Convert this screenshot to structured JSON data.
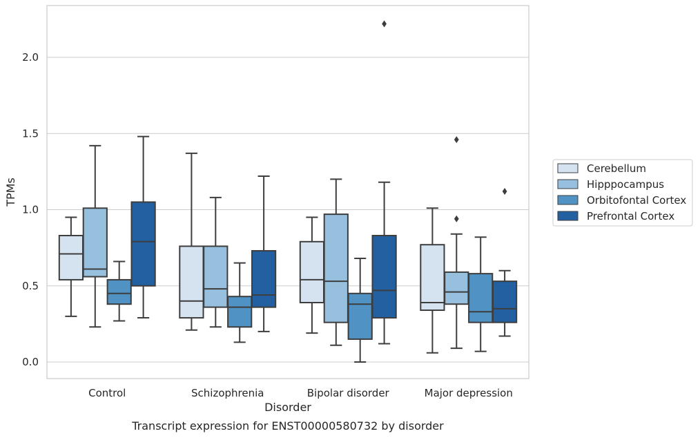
{
  "chart_data": {
    "type": "box",
    "title": "Transcript expression for ENST00000580732 by disorder",
    "xlabel": "Disorder",
    "ylabel": "TPMs",
    "ylim": [
      -0.1,
      2.35
    ],
    "yticks": [
      "0.0",
      "0.5",
      "1.0",
      "1.5",
      "2.0"
    ],
    "grid": "horizontal",
    "legend_position": "right",
    "categories": [
      "Control",
      "Schizophrenia",
      "Bipolar disorder",
      "Major depression"
    ],
    "series": [
      {
        "name": "Cerebellum",
        "color": "#d5e3f1",
        "boxes": [
          {
            "whislo": 0.3,
            "q1": 0.54,
            "med": 0.71,
            "q3": 0.83,
            "whishi": 0.95,
            "fliers": []
          },
          {
            "whislo": 0.21,
            "q1": 0.29,
            "med": 0.4,
            "q3": 0.76,
            "whishi": 1.37,
            "fliers": []
          },
          {
            "whislo": 0.19,
            "q1": 0.39,
            "med": 0.54,
            "q3": 0.79,
            "whishi": 0.95,
            "fliers": []
          },
          {
            "whislo": 0.06,
            "q1": 0.34,
            "med": 0.39,
            "q3": 0.77,
            "whishi": 1.01,
            "fliers": []
          }
        ]
      },
      {
        "name": "Hipppocampus",
        "color": "#97c0de",
        "boxes": [
          {
            "whislo": 0.23,
            "q1": 0.56,
            "med": 0.61,
            "q3": 1.01,
            "whishi": 1.42,
            "fliers": []
          },
          {
            "whislo": 0.23,
            "q1": 0.36,
            "med": 0.48,
            "q3": 0.76,
            "whishi": 1.08,
            "fliers": []
          },
          {
            "whislo": 0.11,
            "q1": 0.26,
            "med": 0.53,
            "q3": 0.97,
            "whishi": 1.2,
            "fliers": []
          },
          {
            "whislo": 0.09,
            "q1": 0.38,
            "med": 0.46,
            "q3": 0.59,
            "whishi": 0.84,
            "fliers": [
              0.94,
              1.46
            ]
          }
        ]
      },
      {
        "name": "Orbitofontal Cortex",
        "color": "#4f92c3",
        "boxes": [
          {
            "whislo": 0.27,
            "q1": 0.38,
            "med": 0.45,
            "q3": 0.54,
            "whishi": 0.66,
            "fliers": []
          },
          {
            "whislo": 0.13,
            "q1": 0.23,
            "med": 0.36,
            "q3": 0.43,
            "whishi": 0.65,
            "fliers": []
          },
          {
            "whislo": 0.0,
            "q1": 0.15,
            "med": 0.38,
            "q3": 0.45,
            "whishi": 0.68,
            "fliers": []
          },
          {
            "whislo": 0.07,
            "q1": 0.26,
            "med": 0.33,
            "q3": 0.58,
            "whishi": 0.82,
            "fliers": []
          }
        ]
      },
      {
        "name": "Prefrontal Cortex",
        "color": "#2260a1",
        "boxes": [
          {
            "whislo": 0.29,
            "q1": 0.5,
            "med": 0.79,
            "q3": 1.05,
            "whishi": 1.48,
            "fliers": []
          },
          {
            "whislo": 0.2,
            "q1": 0.36,
            "med": 0.44,
            "q3": 0.73,
            "whishi": 1.22,
            "fliers": []
          },
          {
            "whislo": 0.12,
            "q1": 0.29,
            "med": 0.47,
            "q3": 0.83,
            "whishi": 1.18,
            "fliers": [
              2.22
            ]
          },
          {
            "whislo": 0.17,
            "q1": 0.26,
            "med": 0.35,
            "q3": 0.53,
            "whishi": 0.6,
            "fliers": [
              1.12
            ]
          }
        ]
      }
    ]
  }
}
